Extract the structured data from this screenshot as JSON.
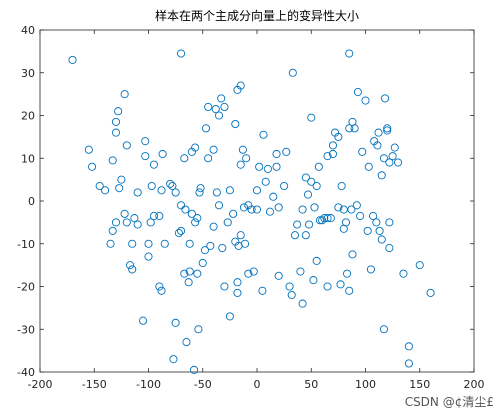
{
  "chart_data": {
    "type": "scatter",
    "title": "样本在两个主成分向量上的变异性大小",
    "color": "#0072bd",
    "marker": "circle-open",
    "xlim": [
      -200,
      200
    ],
    "xticks": [
      -200,
      -150,
      -100,
      -50,
      0,
      50,
      100,
      150,
      200
    ],
    "ylim": [
      -40,
      40
    ],
    "yticks": [
      -40,
      -30,
      -20,
      -10,
      0,
      10,
      20,
      30,
      40
    ],
    "x": [
      -170,
      -70,
      33,
      85,
      -155,
      -152,
      -145,
      -140,
      -135,
      -133,
      -130,
      -133,
      -130,
      -128,
      -130,
      -127,
      -125,
      -122,
      -120,
      -122,
      -120,
      -117,
      -115,
      -115,
      -113,
      -110,
      -110,
      -105,
      -103,
      -103,
      -100,
      -100,
      -98,
      -95,
      -97,
      -95,
      -90,
      -90,
      -88,
      -88,
      -87,
      -85,
      -80,
      -78,
      -77,
      -75,
      -75,
      -72,
      -70,
      -70,
      -67,
      -67,
      -66,
      -65,
      -63,
      -62,
      -62,
      -60,
      -60,
      -58,
      -57,
      -57,
      -55,
      -55,
      -54,
      -53,
      -52,
      -50,
      -48,
      -47,
      -45,
      -45,
      -43,
      -40,
      -40,
      -38,
      -37,
      -35,
      -35,
      -33,
      -30,
      -32,
      -30,
      -27,
      -25,
      -25,
      -22,
      -20,
      -20,
      -18,
      -18,
      -18,
      -17,
      -15,
      -15,
      -15,
      -13,
      -12,
      -11,
      -10,
      -8,
      -8,
      -5,
      -3,
      0,
      0,
      2,
      5,
      6,
      8,
      10,
      12,
      15,
      18,
      18,
      20,
      20,
      25,
      27,
      30,
      32,
      35,
      37,
      40,
      42,
      42,
      45,
      45,
      47,
      48,
      50,
      50,
      52,
      53,
      55,
      55,
      57,
      58,
      60,
      62,
      65,
      65,
      65,
      68,
      70,
      70,
      72,
      75,
      75,
      77,
      78,
      80,
      80,
      82,
      83,
      85,
      85,
      87,
      88,
      88,
      90,
      92,
      93,
      95,
      97,
      100,
      102,
      103,
      105,
      107,
      108,
      110,
      111,
      112,
      113,
      115,
      115,
      117,
      117,
      118,
      120,
      120,
      122,
      122,
      122,
      125,
      127,
      130,
      135,
      140,
      140,
      150,
      160
    ],
    "values": [
      33,
      34.5,
      30,
      34.5,
      12,
      8,
      3.5,
      2.5,
      -10,
      -7,
      -5,
      9.5,
      18.5,
      21,
      16,
      3,
      5,
      -3,
      -5,
      25,
      13,
      -15,
      -16,
      -10,
      -4,
      -5.5,
      2,
      -28,
      14,
      10.5,
      -13,
      -10,
      -5,
      -3.5,
      3.5,
      8.5,
      -20,
      -3.5,
      -21,
      2.5,
      11,
      -10,
      4,
      3.5,
      -37,
      -28.5,
      2,
      -7.5,
      -7,
      -1,
      10,
      -17,
      -2,
      -33,
      -19,
      -16.5,
      -10,
      -3,
      11.5,
      -39.5,
      -5,
      12.5,
      -4,
      -17,
      -30,
      2,
      3,
      -14.5,
      -11.5,
      17,
      10,
      22,
      -10.5,
      12,
      -6,
      21.5,
      2,
      20,
      -1,
      24,
      -20,
      -11,
      22,
      -5,
      -27,
      2.5,
      -3,
      18,
      -9.5,
      26,
      -21.5,
      -19,
      -10.5,
      8.5,
      -8,
      27,
      12,
      -1.5,
      -10,
      10,
      -17,
      -1,
      -2,
      -16.5,
      2.5,
      -2,
      8,
      -21,
      15.5,
      4.5,
      7.5,
      -2.5,
      1,
      11,
      8,
      -1.5,
      -17.5,
      3.5,
      11.5,
      -20,
      -22,
      -8,
      -5.5,
      -16.5,
      -2,
      -24,
      5.5,
      -8,
      1.5,
      -5.5,
      4.5,
      19.5,
      -18.5,
      -1.5,
      3.5,
      -14,
      8,
      -4.5,
      -4.5,
      -4,
      10.5,
      -4,
      -20,
      -4,
      11,
      13,
      16,
      -1.5,
      15,
      -19.5,
      3.5,
      -6.5,
      -2,
      -5,
      -17,
      -21,
      17,
      -2,
      18.5,
      -12.5,
      17,
      -1,
      25.5,
      -3.5,
      11.5,
      23.5,
      -7,
      8,
      -16,
      -3.5,
      14,
      -5,
      13,
      16,
      -7,
      -9,
      6,
      -30,
      10,
      24,
      16.5,
      17,
      -11,
      -5,
      9,
      10.5,
      12.5,
      9,
      -17,
      -34,
      -38,
      -15,
      -21.5
    ]
  },
  "watermark": "CSDN @¢清尘£"
}
